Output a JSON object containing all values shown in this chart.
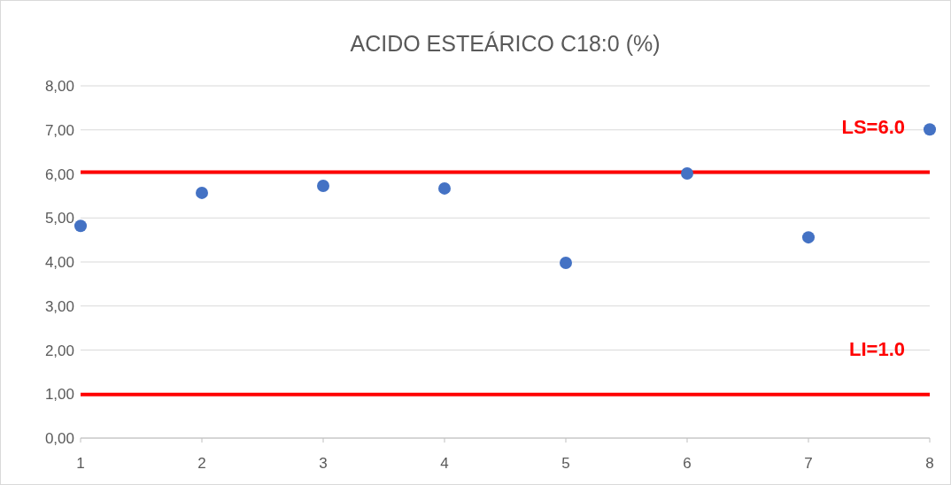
{
  "chart_data": {
    "type": "scatter",
    "title": "ACIDO ESTEÁRICO C18:0 (%)",
    "x": [
      1,
      2,
      3,
      4,
      5,
      6,
      7,
      8
    ],
    "series": [
      {
        "color": "#4472c4",
        "values": [
          4.82,
          5.57,
          5.73,
          5.67,
          3.98,
          6.01,
          4.56,
          7.01
        ]
      }
    ],
    "xlim": [
      1,
      8
    ],
    "xticks": [
      1,
      2,
      3,
      4,
      5,
      6,
      7,
      8
    ],
    "ylim": [
      0,
      8
    ],
    "yticks": [
      {
        "value": 0,
        "label": "0,00"
      },
      {
        "value": 1,
        "label": "1,00"
      },
      {
        "value": 2,
        "label": "2,00"
      },
      {
        "value": 3,
        "label": "3,00"
      },
      {
        "value": 4,
        "label": "4,00"
      },
      {
        "value": 5,
        "label": "5,00"
      },
      {
        "value": 6,
        "label": "6,00"
      },
      {
        "value": 7,
        "label": "7,00"
      },
      {
        "value": 8,
        "label": "8,00"
      }
    ],
    "grid": "y",
    "marker": "circle",
    "ref_lines": [
      {
        "axis": "y",
        "value": 6.04,
        "label": "LS=6.0",
        "color": "#ff0000"
      },
      {
        "axis": "y",
        "value": 0.99,
        "label": "LI=1.0",
        "color": "#ff0000"
      }
    ]
  }
}
